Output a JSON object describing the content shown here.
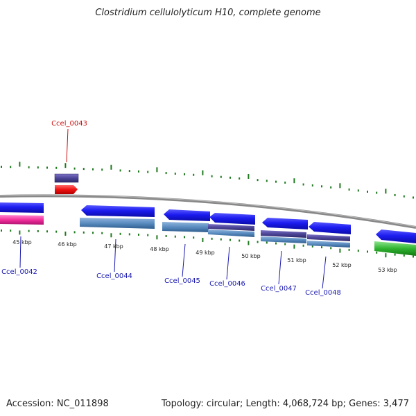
{
  "title": "Clostridium cellulolyticum H10, complete genome",
  "footer": {
    "accession": "Accession: NC_011898",
    "summary": "Topology: circular; Length: 4,068,724 bp; Genes: 3,477"
  },
  "colors": {
    "tick": "#1e7a1e",
    "backbone": "#8a8a8a",
    "label_blue": "#1818b0",
    "label_red": "#cc1010"
  },
  "axis_labels": [
    "45 kbp",
    "46 kbp",
    "47 kbp",
    "48 kbp",
    "49 kbp",
    "50 kbp",
    "51 kbp",
    "52 kbp",
    "53 kbp"
  ],
  "gene_labels": [
    {
      "text": "Ccel_0043",
      "color": "red"
    },
    {
      "text": "Ccel_0042",
      "color": "blue"
    },
    {
      "text": "Ccel_0044",
      "color": "blue"
    },
    {
      "text": "Ccel_0045",
      "color": "blue"
    },
    {
      "text": "Ccel_0046",
      "color": "blue"
    },
    {
      "text": "Ccel_0047",
      "color": "blue"
    },
    {
      "text": "Ccel_0048",
      "color": "blue"
    }
  ]
}
